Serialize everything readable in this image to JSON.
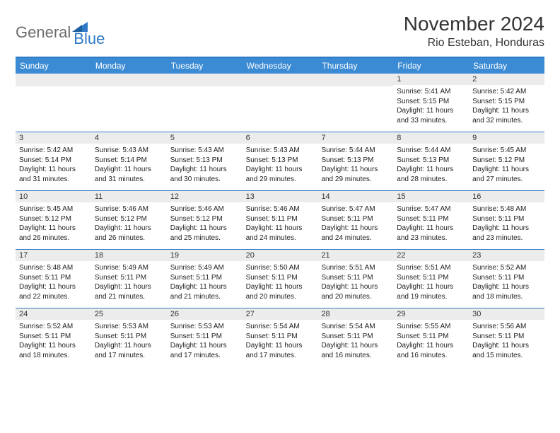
{
  "brand": {
    "part1": "General",
    "part2": "Blue"
  },
  "title": "November 2024",
  "location": "Rio Esteban, Honduras",
  "colors": {
    "header_bg": "#3b8bd4",
    "border": "#2f7ac6",
    "daynum_bg": "#ececec",
    "text": "#222222",
    "logo_gray": "#6b6b6b",
    "logo_blue": "#2f7ac6"
  },
  "weekdays": [
    "Sunday",
    "Monday",
    "Tuesday",
    "Wednesday",
    "Thursday",
    "Friday",
    "Saturday"
  ],
  "weeks": [
    [
      null,
      null,
      null,
      null,
      null,
      {
        "n": "1",
        "sr": "5:41 AM",
        "ss": "5:15 PM",
        "dl": "11 hours and 33 minutes."
      },
      {
        "n": "2",
        "sr": "5:42 AM",
        "ss": "5:15 PM",
        "dl": "11 hours and 32 minutes."
      }
    ],
    [
      {
        "n": "3",
        "sr": "5:42 AM",
        "ss": "5:14 PM",
        "dl": "11 hours and 31 minutes."
      },
      {
        "n": "4",
        "sr": "5:43 AM",
        "ss": "5:14 PM",
        "dl": "11 hours and 31 minutes."
      },
      {
        "n": "5",
        "sr": "5:43 AM",
        "ss": "5:13 PM",
        "dl": "11 hours and 30 minutes."
      },
      {
        "n": "6",
        "sr": "5:43 AM",
        "ss": "5:13 PM",
        "dl": "11 hours and 29 minutes."
      },
      {
        "n": "7",
        "sr": "5:44 AM",
        "ss": "5:13 PM",
        "dl": "11 hours and 29 minutes."
      },
      {
        "n": "8",
        "sr": "5:44 AM",
        "ss": "5:13 PM",
        "dl": "11 hours and 28 minutes."
      },
      {
        "n": "9",
        "sr": "5:45 AM",
        "ss": "5:12 PM",
        "dl": "11 hours and 27 minutes."
      }
    ],
    [
      {
        "n": "10",
        "sr": "5:45 AM",
        "ss": "5:12 PM",
        "dl": "11 hours and 26 minutes."
      },
      {
        "n": "11",
        "sr": "5:46 AM",
        "ss": "5:12 PM",
        "dl": "11 hours and 26 minutes."
      },
      {
        "n": "12",
        "sr": "5:46 AM",
        "ss": "5:12 PM",
        "dl": "11 hours and 25 minutes."
      },
      {
        "n": "13",
        "sr": "5:46 AM",
        "ss": "5:11 PM",
        "dl": "11 hours and 24 minutes."
      },
      {
        "n": "14",
        "sr": "5:47 AM",
        "ss": "5:11 PM",
        "dl": "11 hours and 24 minutes."
      },
      {
        "n": "15",
        "sr": "5:47 AM",
        "ss": "5:11 PM",
        "dl": "11 hours and 23 minutes."
      },
      {
        "n": "16",
        "sr": "5:48 AM",
        "ss": "5:11 PM",
        "dl": "11 hours and 23 minutes."
      }
    ],
    [
      {
        "n": "17",
        "sr": "5:48 AM",
        "ss": "5:11 PM",
        "dl": "11 hours and 22 minutes."
      },
      {
        "n": "18",
        "sr": "5:49 AM",
        "ss": "5:11 PM",
        "dl": "11 hours and 21 minutes."
      },
      {
        "n": "19",
        "sr": "5:49 AM",
        "ss": "5:11 PM",
        "dl": "11 hours and 21 minutes."
      },
      {
        "n": "20",
        "sr": "5:50 AM",
        "ss": "5:11 PM",
        "dl": "11 hours and 20 minutes."
      },
      {
        "n": "21",
        "sr": "5:51 AM",
        "ss": "5:11 PM",
        "dl": "11 hours and 20 minutes."
      },
      {
        "n": "22",
        "sr": "5:51 AM",
        "ss": "5:11 PM",
        "dl": "11 hours and 19 minutes."
      },
      {
        "n": "23",
        "sr": "5:52 AM",
        "ss": "5:11 PM",
        "dl": "11 hours and 18 minutes."
      }
    ],
    [
      {
        "n": "24",
        "sr": "5:52 AM",
        "ss": "5:11 PM",
        "dl": "11 hours and 18 minutes."
      },
      {
        "n": "25",
        "sr": "5:53 AM",
        "ss": "5:11 PM",
        "dl": "11 hours and 17 minutes."
      },
      {
        "n": "26",
        "sr": "5:53 AM",
        "ss": "5:11 PM",
        "dl": "11 hours and 17 minutes."
      },
      {
        "n": "27",
        "sr": "5:54 AM",
        "ss": "5:11 PM",
        "dl": "11 hours and 17 minutes."
      },
      {
        "n": "28",
        "sr": "5:54 AM",
        "ss": "5:11 PM",
        "dl": "11 hours and 16 minutes."
      },
      {
        "n": "29",
        "sr": "5:55 AM",
        "ss": "5:11 PM",
        "dl": "11 hours and 16 minutes."
      },
      {
        "n": "30",
        "sr": "5:56 AM",
        "ss": "5:11 PM",
        "dl": "11 hours and 15 minutes."
      }
    ]
  ],
  "labels": {
    "sunrise": "Sunrise:",
    "sunset": "Sunset:",
    "daylight": "Daylight:"
  }
}
